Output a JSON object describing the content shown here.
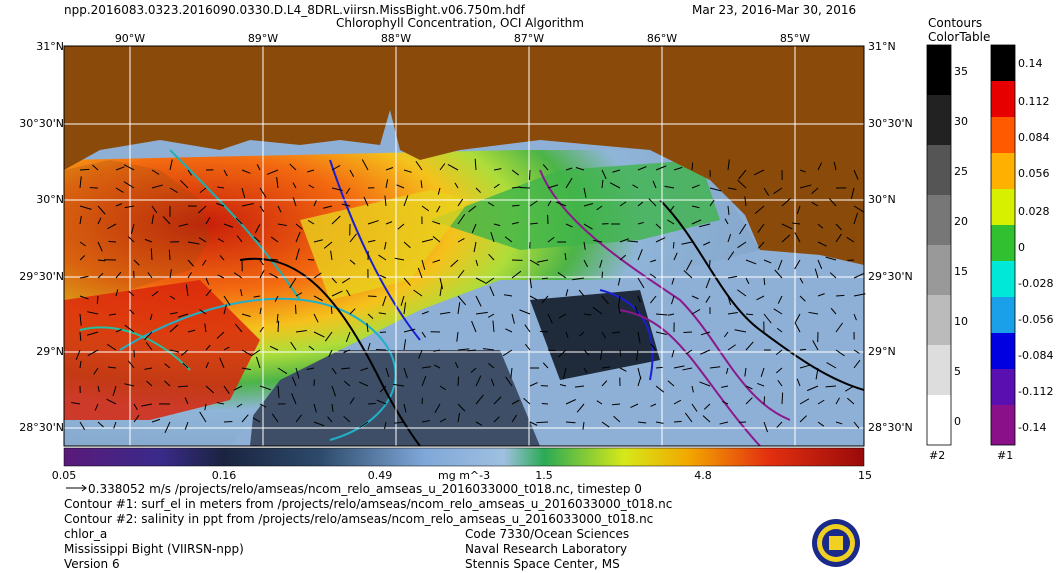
{
  "header": {
    "filename": "npp.2016083.0323.2016090.0330.D.L4_8DRL.viirsn.MissBight.v06.750m.hdf",
    "title": "Chlorophyll Concentration, OCI Algorithm",
    "date_range": "Mar 23, 2016-Mar 30, 2016"
  },
  "map": {
    "lon_labels": [
      "90°W",
      "89°W",
      "88°W",
      "87°W",
      "86°W",
      "85°W"
    ],
    "lat_labels": [
      "31°N",
      "30°30'N",
      "30°N",
      "29°30'N",
      "29°N",
      "28°30'N"
    ],
    "colors": {
      "land": "#8a4a0a",
      "gridline": "#ffffff"
    }
  },
  "chlor_colorbar": {
    "ticks": [
      "0.05",
      "0.16",
      "0.49",
      "1.5",
      "4.8",
      "15"
    ],
    "unit": "mg m^-3"
  },
  "contours_bar": {
    "title_line1": "Contours",
    "title_line2": "ColorTable",
    "values": [
      "35",
      "30",
      "25",
      "20",
      "15",
      "10",
      "5",
      "0"
    ],
    "label": "#2"
  },
  "colortable_bar": {
    "values": [
      "0.14",
      "0.112",
      "0.084",
      "0.056",
      "0.028",
      "0",
      "-0.028",
      "-0.056",
      "-0.084",
      "-0.112",
      "-0.14"
    ],
    "label": "#1"
  },
  "footer": {
    "vector_line": "0.338052 m/s /projects/relo/amseas/ncom_relo_amseas_u_2016033000_t018.nc, timestep 0",
    "contour1": "Contour #1: surf_el in meters from /projects/relo/amseas/ncom_relo_amseas_u_2016033000_t018.nc",
    "contour2": "Contour #2: salinity in ppt from /projects/relo/amseas/ncom_relo_amseas_u_2016033000_t018.nc",
    "product": "chlor_a",
    "region": "Mississippi Bight (VIIRSN-npp)",
    "version": "Version 6",
    "org1": "Code 7330/Ocean Sciences",
    "org2": "Naval Research Laboratory",
    "org3": "Stennis Space Center, MS"
  }
}
